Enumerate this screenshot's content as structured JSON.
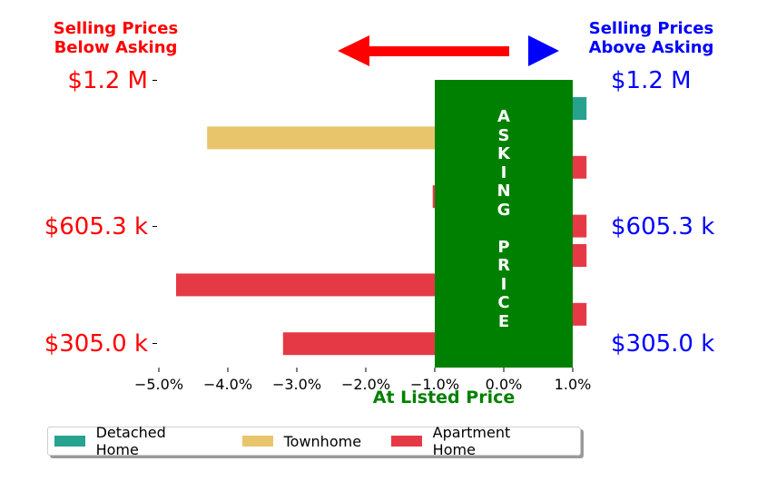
{
  "header": {
    "below_asking": "Selling Prices\nBelow Asking",
    "above_asking": "Selling Prices\nAbove Asking"
  },
  "colors": {
    "below": "#ff0000",
    "above": "#0000ff",
    "asking_box": "#008000",
    "detached": "#26a28f",
    "townhome": "#e8c56b",
    "apartment": "#e63946"
  },
  "price_axis": {
    "top": "$1.2 M",
    "middle": "$605.3 k",
    "bottom": "$305.0 k"
  },
  "asking_label": [
    "A",
    "S",
    "K",
    "I",
    "N",
    "G",
    " ",
    "P",
    "R",
    "I",
    "C",
    "E"
  ],
  "x_caption": "At Listed Price",
  "chart_data": {
    "type": "bar",
    "orientation": "horizontal",
    "xlim": [
      -5.3,
      1.0
    ],
    "x_ticks": [
      "−5.0%",
      "−4.0%",
      "−3.0%",
      "−2.0%",
      "−1.0%",
      "0.0%",
      "1.0%"
    ],
    "x_tick_values": [
      -5.0,
      -4.0,
      -3.0,
      -2.0,
      -1.0,
      0.0,
      1.0
    ],
    "xlabel": "At Listed Price",
    "bars": [
      {
        "series": "Detached Home",
        "value": 1.2
      },
      {
        "series": "Townhome",
        "value": -4.3
      },
      {
        "series": "Apartment Home",
        "value": 1.2
      },
      {
        "series": "Apartment Home",
        "value": -1.03
      },
      {
        "series": "Apartment Home",
        "value": 1.2
      },
      {
        "series": "Apartment Home",
        "value": 1.2
      },
      {
        "series": "Apartment Home",
        "value": -4.75
      },
      {
        "series": "Apartment Home",
        "value": 1.2
      },
      {
        "series": "Apartment Home",
        "value": -3.2
      }
    ],
    "legend": [
      "Detached Home",
      "Townhome",
      "Apartment Home"
    ],
    "legend_position": "bottom"
  }
}
